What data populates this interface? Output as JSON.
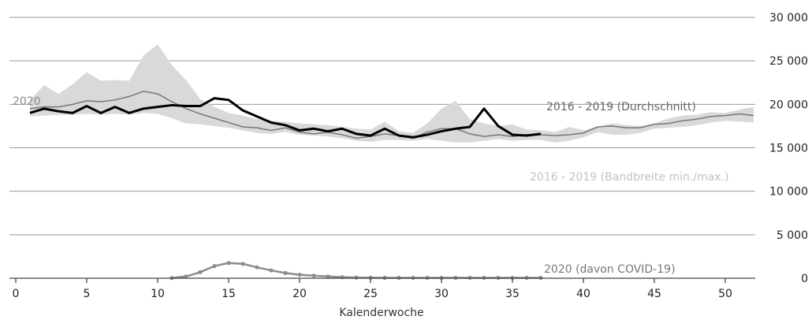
{
  "chart_data": {
    "type": "line",
    "xlabel": "Kalenderwoche",
    "xlim": [
      0,
      52
    ],
    "ylim": [
      0,
      30000
    ],
    "x_ticks": [
      0,
      5,
      10,
      15,
      20,
      25,
      30,
      35,
      40,
      45,
      50
    ],
    "x_tick_labels": [
      "0",
      "5",
      "10",
      "15",
      "20",
      "25",
      "30",
      "35",
      "40",
      "45",
      "50"
    ],
    "y_ticks": [
      0,
      5000,
      10000,
      15000,
      20000,
      25000,
      30000
    ],
    "y_tick_labels": [
      "0",
      "5 000",
      "10 000",
      "15 000",
      "20 000",
      "25 000",
      "30 000"
    ],
    "grid": "horizontal",
    "annotations": {
      "year_2020": "2020",
      "average": "2016 - 2019 (Durchschnitt)",
      "band": "2016 - 2019 (Bandbreite min./max.)",
      "covid": "2020 (davon COVID-19)"
    },
    "band": {
      "x": [
        1,
        2,
        3,
        4,
        5,
        6,
        7,
        8,
        9,
        10,
        11,
        12,
        13,
        14,
        15,
        16,
        17,
        18,
        19,
        20,
        21,
        22,
        23,
        24,
        25,
        26,
        27,
        28,
        29,
        30,
        31,
        32,
        33,
        34,
        35,
        36,
        37,
        38,
        39,
        40,
        41,
        42,
        43,
        44,
        45,
        46,
        47,
        48,
        49,
        50,
        51,
        52
      ],
      "min": [
        18600,
        18700,
        18800,
        18800,
        18900,
        18800,
        18900,
        18800,
        19000,
        18900,
        18400,
        17800,
        17700,
        17500,
        17300,
        17000,
        16700,
        16600,
        16800,
        16500,
        16400,
        16300,
        16100,
        15800,
        15700,
        15900,
        15900,
        15800,
        16000,
        15800,
        15600,
        15600,
        15800,
        16000,
        15800,
        15900,
        15900,
        15600,
        15800,
        16200,
        16800,
        16500,
        16500,
        16700,
        17200,
        17300,
        17400,
        17600,
        17900,
        18100,
        18000,
        17900
      ],
      "max": [
        20500,
        22200,
        21200,
        22300,
        23700,
        22700,
        22800,
        22700,
        25600,
        26900,
        24500,
        22800,
        20600,
        19700,
        19000,
        18700,
        18300,
        18100,
        18000,
        17800,
        17700,
        17600,
        17400,
        17200,
        17100,
        18000,
        16900,
        16700,
        17800,
        19500,
        20400,
        18300,
        17800,
        17500,
        17700,
        17100,
        17000,
        16800,
        17400,
        17000,
        17400,
        17800,
        17600,
        17500,
        17800,
        18400,
        18700,
        18800,
        19100,
        19000,
        19400,
        19700
      ]
    },
    "series": [
      {
        "name": "2016 - 2019 (Durchschnitt)",
        "color": "#777777",
        "x": [
          1,
          2,
          3,
          4,
          5,
          6,
          7,
          8,
          9,
          10,
          11,
          12,
          13,
          14,
          15,
          16,
          17,
          18,
          19,
          20,
          21,
          22,
          23,
          24,
          25,
          26,
          27,
          28,
          29,
          30,
          31,
          32,
          33,
          34,
          35,
          36,
          37,
          38,
          39,
          40,
          41,
          42,
          43,
          44,
          45,
          46,
          47,
          48,
          49,
          50,
          51,
          52
        ],
        "y": [
          19500,
          19700,
          19700,
          20000,
          20400,
          20300,
          20500,
          20900,
          21500,
          21200,
          20300,
          19500,
          18900,
          18400,
          17900,
          17400,
          17300,
          17000,
          17300,
          16800,
          16600,
          16800,
          16500,
          16100,
          16300,
          16600,
          16400,
          16100,
          16800,
          17200,
          17200,
          16600,
          16300,
          16500,
          16300,
          16500,
          16500,
          16400,
          16500,
          16700,
          17400,
          17500,
          17300,
          17300,
          17700,
          17800,
          18100,
          18300,
          18600,
          18700,
          18900,
          18700
        ]
      },
      {
        "name": "2020",
        "color": "#000000",
        "x": [
          1,
          2,
          3,
          4,
          5,
          6,
          7,
          8,
          9,
          10,
          11,
          12,
          13,
          14,
          15,
          16,
          17,
          18,
          19,
          20,
          21,
          22,
          23,
          24,
          25,
          26,
          27,
          28,
          29,
          30,
          31,
          32,
          33,
          34,
          35,
          36,
          37
        ],
        "y": [
          19000,
          19500,
          19200,
          19000,
          19800,
          19000,
          19700,
          19000,
          19500,
          19700,
          19900,
          19800,
          19800,
          20700,
          20500,
          19300,
          18600,
          17900,
          17600,
          17000,
          17200,
          16900,
          17200,
          16600,
          16400,
          17200,
          16400,
          16200,
          16500,
          16900,
          17200,
          17400,
          19500,
          17500,
          16500,
          16400,
          16600
        ]
      },
      {
        "name": "2020 (davon COVID-19)",
        "color": "#8c8c8c",
        "x": [
          11,
          12,
          13,
          14,
          15,
          16,
          17,
          18,
          19,
          20,
          21,
          22,
          23,
          24,
          25,
          26,
          27,
          28,
          29,
          30,
          31,
          32,
          33,
          34,
          35,
          36,
          37
        ],
        "y": [
          30,
          200,
          700,
          1400,
          1750,
          1650,
          1250,
          900,
          600,
          400,
          300,
          200,
          120,
          80,
          60,
          50,
          50,
          50,
          50,
          50,
          50,
          50,
          50,
          50,
          50,
          50,
          50
        ]
      }
    ]
  }
}
